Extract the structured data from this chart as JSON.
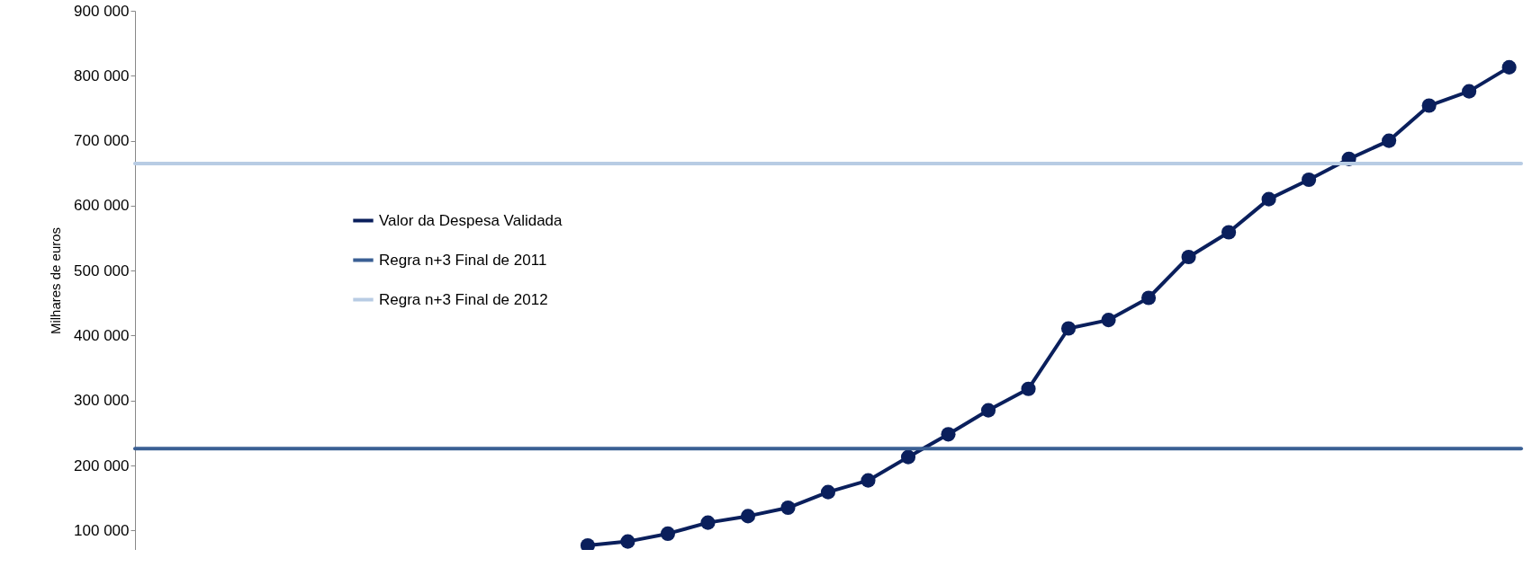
{
  "chart_data": {
    "type": "line",
    "ylabel": "Milhares de euros",
    "categories": [
      null,
      null,
      null,
      null,
      null,
      null,
      null,
      null,
      null,
      null,
      null,
      null,
      null,
      null,
      null,
      null,
      null,
      null,
      null,
      null,
      null,
      null,
      null,
      null,
      null,
      null,
      null,
      null,
      null,
      null,
      null,
      null,
      null,
      null,
      null
    ],
    "series": [
      {
        "name": "Valor da Despesa Validada",
        "color": "#0a1f5c",
        "values": [
          null,
          null,
          null,
          null,
          null,
          null,
          null,
          null,
          null,
          null,
          null,
          77000,
          83000,
          95000,
          112000,
          122000,
          135000,
          159000,
          177000,
          213000,
          248000,
          285000,
          318000,
          411000,
          424000,
          458000,
          521000,
          559000,
          610000,
          640000,
          672000,
          700000,
          754000,
          776000,
          813000
        ]
      }
    ],
    "ref_lines": [
      {
        "axis": "y",
        "value": 226000,
        "label": "Regra n+3 Final de 2011",
        "color": "#3a5f94"
      },
      {
        "axis": "y",
        "value": 665000,
        "label": "Regra n+3 Final de 2012",
        "color": "#b8cce4"
      }
    ],
    "ylim": [
      70000,
      900000
    ],
    "yticks": [
      {
        "value": 100000,
        "label": "100 000"
      },
      {
        "value": 200000,
        "label": "200 000"
      },
      {
        "value": 300000,
        "label": "300 000"
      },
      {
        "value": 400000,
        "label": "400 000"
      },
      {
        "value": 500000,
        "label": "500 000"
      },
      {
        "value": 600000,
        "label": "600 000"
      },
      {
        "value": 700000,
        "label": "700 000"
      },
      {
        "value": 800000,
        "label": "800 000"
      },
      {
        "value": 900000,
        "label": "900 000"
      }
    ],
    "grid": false,
    "legend": "left",
    "marker": "circle",
    "line_style": "solid"
  }
}
